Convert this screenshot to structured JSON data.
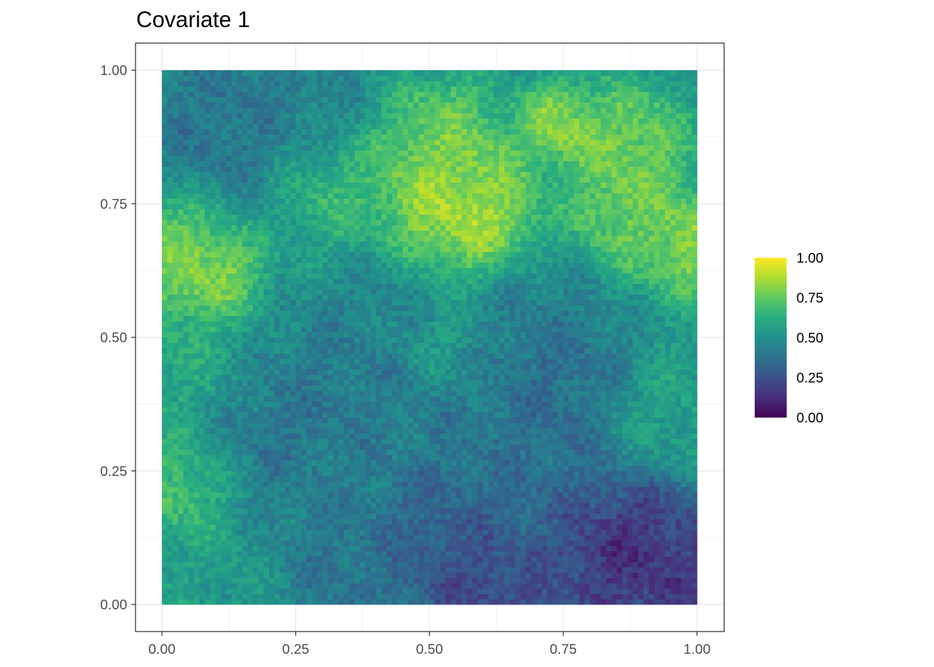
{
  "chart_data": {
    "type": "heatmap",
    "title": "Covariate 1",
    "xlabel": "",
    "ylabel": "",
    "xlim": [
      -0.05,
      1.05
    ],
    "ylim": [
      -0.05,
      1.05
    ],
    "x_ticks": [
      "0.00",
      "0.25",
      "0.50",
      "0.75",
      "1.00"
    ],
    "y_ticks": [
      "0.00",
      "0.25",
      "0.50",
      "0.75",
      "1.00"
    ],
    "grid": true,
    "colormap": "viridis",
    "value_range": [
      0,
      1
    ],
    "legend": {
      "placement": "right",
      "labels": [
        "1.00",
        "0.75",
        "0.50",
        "0.25",
        "0.00"
      ]
    },
    "grid_size": 100,
    "regions": [
      {
        "x": 0.03,
        "y": 0.66,
        "value": 0.85,
        "r": 0.07
      },
      {
        "x": 0.09,
        "y": 0.61,
        "value": 0.88,
        "r": 0.05
      },
      {
        "x": 0.56,
        "y": 0.71,
        "value": 0.98,
        "r": 0.07
      },
      {
        "x": 0.52,
        "y": 0.77,
        "value": 0.88,
        "r": 0.08
      },
      {
        "x": 0.53,
        "y": 0.87,
        "value": 0.8,
        "r": 0.06
      },
      {
        "x": 0.74,
        "y": 0.9,
        "value": 0.9,
        "r": 0.04
      },
      {
        "x": 0.87,
        "y": 0.86,
        "value": 0.85,
        "r": 0.06
      },
      {
        "x": 0.87,
        "y": 0.74,
        "value": 0.82,
        "r": 0.06
      },
      {
        "x": 0.99,
        "y": 0.67,
        "value": 0.9,
        "r": 0.05
      },
      {
        "x": 0.32,
        "y": 0.78,
        "value": 0.7,
        "r": 0.07
      },
      {
        "x": 0.12,
        "y": 0.9,
        "value": 0.35,
        "r": 0.1
      },
      {
        "x": 0.02,
        "y": 0.95,
        "value": 0.42,
        "r": 0.06
      },
      {
        "x": 0.28,
        "y": 0.92,
        "value": 0.42,
        "r": 0.06
      },
      {
        "x": 0.45,
        "y": 0.55,
        "value": 0.42,
        "r": 0.09
      },
      {
        "x": 0.67,
        "y": 0.52,
        "value": 0.4,
        "r": 0.08
      },
      {
        "x": 0.75,
        "y": 0.4,
        "value": 0.3,
        "r": 0.08
      },
      {
        "x": 0.47,
        "y": 0.4,
        "value": 0.4,
        "r": 0.1
      },
      {
        "x": 0.22,
        "y": 0.35,
        "value": 0.35,
        "r": 0.1
      },
      {
        "x": 0.64,
        "y": 0.23,
        "value": 0.35,
        "r": 0.1
      },
      {
        "x": 0.85,
        "y": 0.1,
        "value": 0.06,
        "r": 0.09
      },
      {
        "x": 0.95,
        "y": 0.06,
        "value": 0.12,
        "r": 0.08
      },
      {
        "x": 0.6,
        "y": 0.02,
        "value": 0.12,
        "r": 0.07
      },
      {
        "x": 0.55,
        "y": 0.12,
        "value": 0.22,
        "r": 0.08
      },
      {
        "x": 0.35,
        "y": 0.07,
        "value": 0.35,
        "r": 0.08
      },
      {
        "x": 0.03,
        "y": 0.22,
        "value": 0.75,
        "r": 0.06
      },
      {
        "x": 0.05,
        "y": 0.45,
        "value": 0.65,
        "r": 0.08
      },
      {
        "x": 0.93,
        "y": 0.35,
        "value": 0.6,
        "r": 0.07
      },
      {
        "x": 0.52,
        "y": 0.49,
        "value": 0.7,
        "r": 0.05
      },
      {
        "x": 0.1,
        "y": 0.04,
        "value": 0.55,
        "r": 0.06
      }
    ],
    "base_value": 0.52
  }
}
